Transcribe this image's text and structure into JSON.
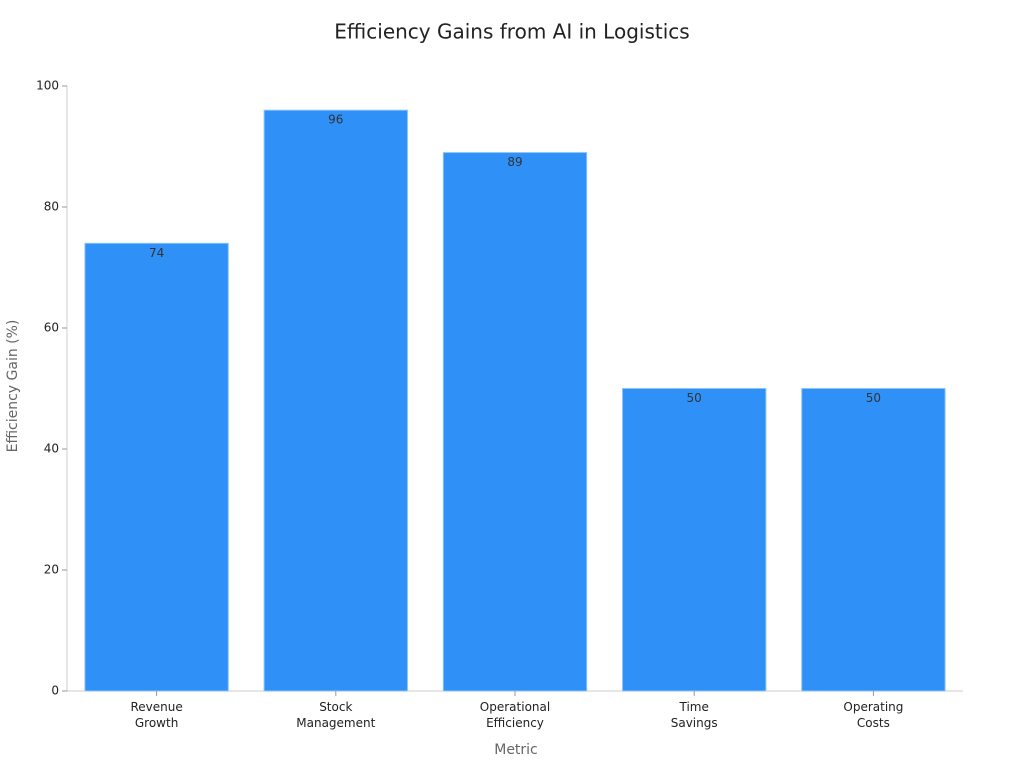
{
  "chart_data": {
    "type": "bar",
    "title": "Efficiency Gains from AI in Logistics",
    "x_label": "Metric",
    "y_label": "Efficiency Gain (%)",
    "categories": [
      "Revenue\nGrowth",
      "Stock\nManagement",
      "Operational\nEfficiency",
      "Time\nSavings",
      "Operating\nCosts"
    ],
    "values": [
      74,
      96,
      89,
      50,
      50
    ],
    "color": "#2f91f7",
    "ylim": [
      0,
      100
    ],
    "yticks": [
      0,
      20,
      40,
      60,
      80,
      100
    ],
    "grid": false
  }
}
